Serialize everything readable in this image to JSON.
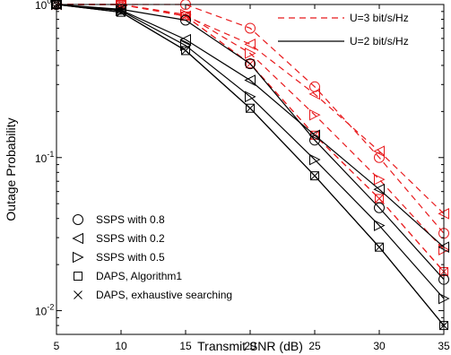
{
  "chart_data": {
    "type": "line",
    "xlabel": "Transmit SNR (dB)",
    "ylabel": "Outage Probability",
    "x": [
      5,
      10,
      15,
      20,
      25,
      30,
      35
    ],
    "xlim": [
      5,
      35
    ],
    "ylim": [
      0.007,
      1
    ],
    "y_scale": "log",
    "x_ticks": [
      "5",
      "10",
      "15",
      "20",
      "25",
      "30",
      "35"
    ],
    "y_ticks": [
      {
        "value": 1,
        "base": "10",
        "exp": "0"
      },
      {
        "value": 0.1,
        "base": "10",
        "exp": "-1"
      },
      {
        "value": 0.01,
        "base": "10",
        "exp": "-2"
      }
    ],
    "grid": false,
    "colors": {
      "u3": "#e8191c",
      "u2": "#000000"
    },
    "series": [
      {
        "group": "u3",
        "marker": "circle",
        "values": [
          1,
          1,
          1,
          0.7,
          0.29,
          0.1,
          0.032
        ]
      },
      {
        "group": "u3",
        "marker": "tri-left",
        "values": [
          1,
          1,
          0.84,
          0.55,
          0.26,
          0.11,
          0.043
        ]
      },
      {
        "group": "u3",
        "marker": "tri-right",
        "values": [
          1,
          1,
          0.86,
          0.48,
          0.19,
          0.072,
          0.025
        ]
      },
      {
        "group": "u3",
        "marker": "square",
        "values": [
          1,
          1,
          0.84,
          0.41,
          0.14,
          0.054,
          0.018
        ]
      },
      {
        "group": "u3",
        "marker": "x",
        "values": [
          1,
          1,
          0.84,
          0.41,
          0.14,
          0.054,
          0.018
        ]
      },
      {
        "group": "u2",
        "marker": "circle",
        "values": [
          1,
          0.93,
          0.79,
          0.41,
          0.13,
          0.047,
          0.016
        ]
      },
      {
        "group": "u2",
        "marker": "tri-left",
        "values": [
          1,
          0.92,
          0.59,
          0.32,
          0.14,
          0.062,
          0.026
        ]
      },
      {
        "group": "u2",
        "marker": "tri-right",
        "values": [
          1,
          0.91,
          0.54,
          0.25,
          0.097,
          0.036,
          0.012
        ]
      },
      {
        "group": "u2",
        "marker": "square",
        "values": [
          1,
          0.89,
          0.5,
          0.21,
          0.076,
          0.026,
          0.008
        ]
      },
      {
        "group": "u2",
        "marker": "x",
        "values": [
          1,
          0.89,
          0.5,
          0.21,
          0.076,
          0.026,
          0.008
        ]
      }
    ],
    "legend_lines": {
      "placement": "top-right",
      "items": [
        {
          "group": "u3",
          "label": "U=3 bit/s/Hz"
        },
        {
          "group": "u2",
          "label": "U=2 bit/s/Hz"
        }
      ]
    },
    "legend_markers": {
      "placement": "bottom-left",
      "items": [
        {
          "marker": "circle",
          "label": "SSPS with 0.8"
        },
        {
          "marker": "tri-left",
          "label": "SSPS with 0.2"
        },
        {
          "marker": "tri-right",
          "label": "SSPS with 0.5"
        },
        {
          "marker": "square",
          "label": "DAPS, Algorithm1"
        },
        {
          "marker": "x",
          "label": "DAPS, exhaustive searching"
        }
      ]
    }
  }
}
